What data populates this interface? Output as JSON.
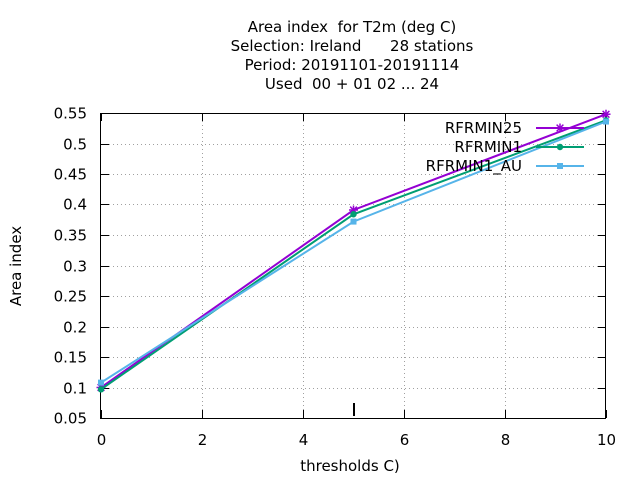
{
  "chart_data": {
    "type": "line",
    "title_lines": [
      "Area index  for T2m (deg C)",
      "Selection: Ireland      28 stations",
      "Period: 20191101-20191114",
      "Used  00 + 01 02 ... 24"
    ],
    "xlabel": "thresholds C)",
    "ylabel": "Area index",
    "xlim": [
      0,
      10
    ],
    "ylim": [
      0.05,
      0.55
    ],
    "xticks": [
      0,
      2,
      4,
      6,
      8,
      10
    ],
    "yticks": [
      0.05,
      0.1,
      0.15,
      0.2,
      0.25,
      0.3,
      0.35,
      0.4,
      0.45,
      0.5,
      0.55
    ],
    "ytick_labels": [
      "0.05",
      "0.1",
      "0.15",
      "0.2",
      "0.25",
      "0.3",
      "0.35",
      "0.4",
      "0.45",
      "0.5",
      "0.55"
    ],
    "grid": true,
    "legend_position": "top-right",
    "series": [
      {
        "name": "RFRMIN25",
        "color": "#9400d3",
        "marker": "star",
        "x": [
          0,
          5,
          10
        ],
        "y": [
          0.1,
          0.391,
          0.548
        ]
      },
      {
        "name": "RFRMIN1",
        "color": "#009e73",
        "marker": "filled-circle",
        "x": [
          0,
          5,
          10
        ],
        "y": [
          0.097,
          0.384,
          0.538
        ]
      },
      {
        "name": "RFRMIN1_AU",
        "color": "#56b4e9",
        "marker": "filled-square",
        "x": [
          0,
          5,
          10
        ],
        "y": [
          0.108,
          0.372,
          0.536
        ]
      }
    ]
  }
}
